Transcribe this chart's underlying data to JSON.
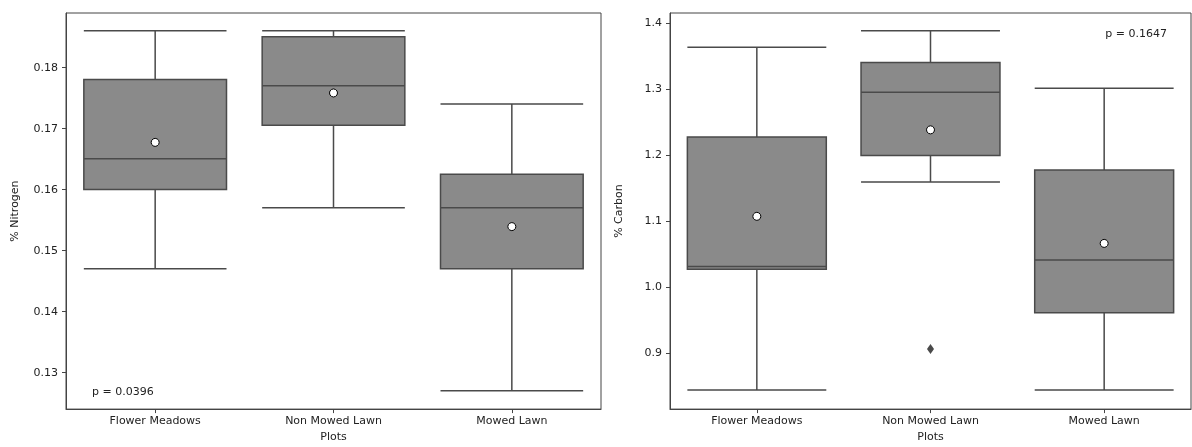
{
  "chart_data": [
    {
      "type": "box",
      "xlabel": "Plots",
      "ylabel": "% Nitrogen",
      "categories": [
        "Flower Meadows",
        "Non Mowed Lawn",
        "Mowed Lawn"
      ],
      "color": "#8a8a8a",
      "boxes": [
        {
          "low": 0.147,
          "q1": 0.16,
          "median": 0.165,
          "q3": 0.178,
          "high": 0.186,
          "mean": 0.1677
        },
        {
          "low": 0.157,
          "q1": 0.1705,
          "median": 0.177,
          "q3": 0.185,
          "high": 0.186,
          "mean": 0.1758
        },
        {
          "low": 0.127,
          "q1": 0.147,
          "median": 0.157,
          "q3": 0.1625,
          "high": 0.174,
          "mean": 0.1539
        }
      ],
      "ylim": [
        0.124,
        0.1889
      ],
      "yticks": [
        0.13,
        0.14,
        0.15,
        0.16,
        0.17,
        0.18
      ],
      "grid": false,
      "annotations": [
        "p = 0.0396"
      ]
    },
    {
      "type": "box",
      "xlabel": "Plots",
      "ylabel": "% Carbon",
      "categories": [
        "Flower Meadows",
        "Non Mowed Lawn",
        "Mowed Lawn"
      ],
      "color": "#8a8a8a",
      "boxes": [
        {
          "low": 0.844,
          "q1": 1.027,
          "median": 1.031,
          "q3": 1.227,
          "high": 1.363,
          "mean": 1.107
        },
        {
          "low": 1.159,
          "q1": 1.199,
          "median": 1.295,
          "q3": 1.34,
          "high": 1.388,
          "mean": 1.238,
          "outliers": [
            0.906
          ]
        },
        {
          "low": 0.844,
          "q1": 0.961,
          "median": 1.041,
          "q3": 1.177,
          "high": 1.301,
          "mean": 1.066
        }
      ],
      "ylim": [
        0.815,
        1.415
      ],
      "yticks": [
        0.9,
        {
          "value": 1,
          "label": "1.0"
        },
        1.1,
        1.2,
        1.3,
        1.4
      ],
      "grid": false,
      "annotations": [
        "p = 0.1647"
      ]
    }
  ]
}
